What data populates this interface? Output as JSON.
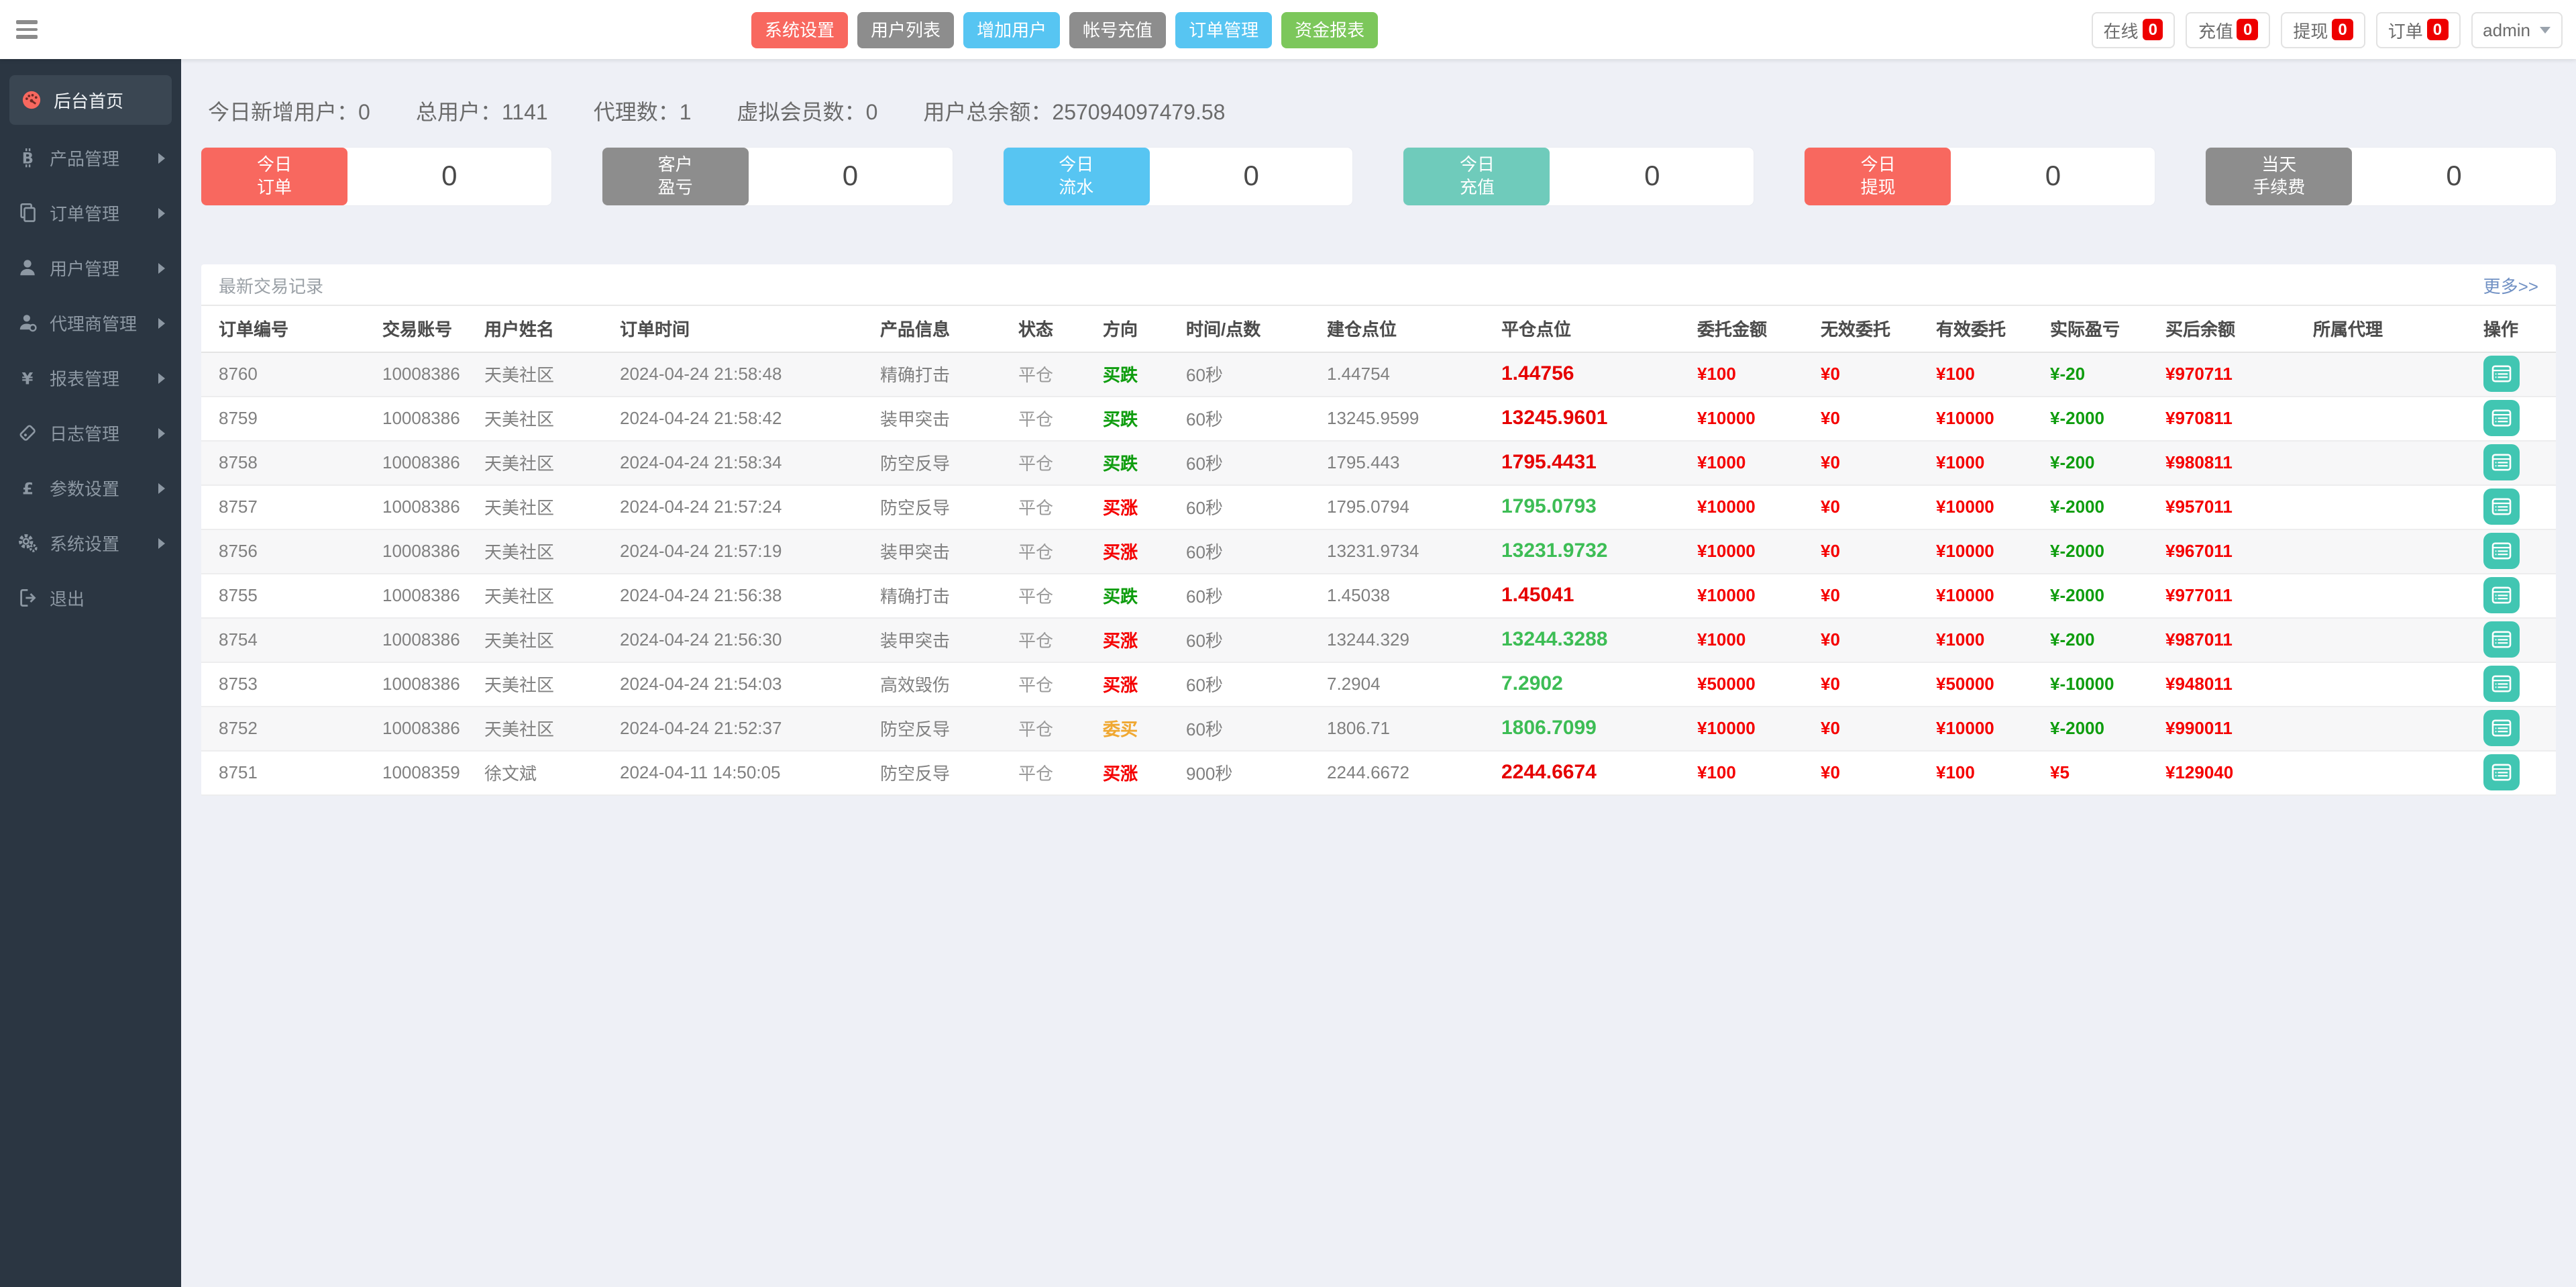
{
  "topbar": {
    "nav_buttons": [
      {
        "label": "系统设置",
        "color": "#f8685f"
      },
      {
        "label": "用户列表",
        "color": "#8d8d8d"
      },
      {
        "label": "增加用户",
        "color": "#57c5f2"
      },
      {
        "label": "帐号充值",
        "color": "#8d8d8d"
      },
      {
        "label": "订单管理",
        "color": "#57c5f2"
      },
      {
        "label": "资金报表",
        "color": "#7cc75b"
      }
    ],
    "status_items": [
      {
        "label": "在线",
        "count": "0"
      },
      {
        "label": "充值",
        "count": "0"
      },
      {
        "label": "提现",
        "count": "0"
      },
      {
        "label": "订单",
        "count": "0"
      }
    ],
    "user_menu": {
      "name": "admin"
    },
    "badge_color": "#ee0000"
  },
  "sidebar": {
    "items": [
      {
        "label": "后台首页",
        "icon": "dashboard",
        "active": true,
        "arrow": false
      },
      {
        "label": "产品管理",
        "icon": "bitcoin",
        "active": false,
        "arrow": true
      },
      {
        "label": "订单管理",
        "icon": "orders",
        "active": false,
        "arrow": true
      },
      {
        "label": "用户管理",
        "icon": "user",
        "active": false,
        "arrow": true
      },
      {
        "label": "代理商管理",
        "icon": "agent",
        "active": false,
        "arrow": true
      },
      {
        "label": "报表管理",
        "icon": "yen",
        "active": false,
        "arrow": true
      },
      {
        "label": "日志管理",
        "icon": "log",
        "active": false,
        "arrow": true
      },
      {
        "label": "参数设置",
        "icon": "pound",
        "active": false,
        "arrow": true
      },
      {
        "label": "系统设置",
        "icon": "gears",
        "active": false,
        "arrow": true
      },
      {
        "label": "退出",
        "icon": "logout",
        "active": false,
        "arrow": false
      }
    ]
  },
  "stats": [
    {
      "label": "今日新增用户：",
      "value": "0"
    },
    {
      "label": "总用户：",
      "value": "1141"
    },
    {
      "label": "代理数：",
      "value": "1"
    },
    {
      "label": "虚拟会员数：",
      "value": "0"
    },
    {
      "label": "用户总余额：",
      "value": "257094097479.58"
    }
  ],
  "summary_cards": [
    {
      "label": "今日\n订单",
      "color": "#f8685f",
      "value": "0"
    },
    {
      "label": "客户\n盈亏",
      "color": "#8d8d8d",
      "value": "0"
    },
    {
      "label": "今日\n流水",
      "color": "#57c5f2",
      "value": "0"
    },
    {
      "label": "今日\n充值",
      "color": "#6fcbbb",
      "value": "0"
    },
    {
      "label": "今日\n提现",
      "color": "#f8685f",
      "value": "0"
    },
    {
      "label": "当天\n手续费",
      "color": "#8d8d8d",
      "value": "0"
    }
  ],
  "panel": {
    "title": "最新交易记录",
    "more_label": "更多>>",
    "columns": [
      "订单编号",
      "交易账号",
      "用户姓名",
      "订单时间",
      "产品信息",
      "状态",
      "方向",
      "时间/点数",
      "建仓点位",
      "平仓点位",
      "委托金额",
      "无效委托",
      "有效委托",
      "实际盈亏",
      "买后余额",
      "所属代理",
      "操作"
    ],
    "rows": [
      {
        "id": "8760",
        "account": "10008386",
        "name": "天美社区",
        "time": "2024-04-24 21:58:48",
        "product": "精确打击",
        "status": "平仓",
        "direction": "买跌",
        "direction_color": "green",
        "period": "60秒",
        "open": "1.44754",
        "close": "1.44756",
        "close_color": "red",
        "amount": "¥100",
        "invalid": "¥0",
        "valid": "¥100",
        "profit": "¥-20",
        "profit_color": "green",
        "balance": "¥970711",
        "agent": ""
      },
      {
        "id": "8759",
        "account": "10008386",
        "name": "天美社区",
        "time": "2024-04-24 21:58:42",
        "product": "装甲突击",
        "status": "平仓",
        "direction": "买跌",
        "direction_color": "green",
        "period": "60秒",
        "open": "13245.9599",
        "close": "13245.9601",
        "close_color": "red",
        "amount": "¥10000",
        "invalid": "¥0",
        "valid": "¥10000",
        "profit": "¥-2000",
        "profit_color": "green",
        "balance": "¥970811",
        "agent": ""
      },
      {
        "id": "8758",
        "account": "10008386",
        "name": "天美社区",
        "time": "2024-04-24 21:58:34",
        "product": "防空反导",
        "status": "平仓",
        "direction": "买跌",
        "direction_color": "green",
        "period": "60秒",
        "open": "1795.443",
        "close": "1795.4431",
        "close_color": "red",
        "amount": "¥1000",
        "invalid": "¥0",
        "valid": "¥1000",
        "profit": "¥-200",
        "profit_color": "green",
        "balance": "¥980811",
        "agent": ""
      },
      {
        "id": "8757",
        "account": "10008386",
        "name": "天美社区",
        "time": "2024-04-24 21:57:24",
        "product": "防空反导",
        "status": "平仓",
        "direction": "买涨",
        "direction_color": "red",
        "period": "60秒",
        "open": "1795.0794",
        "close": "1795.0793",
        "close_color": "green",
        "amount": "¥10000",
        "invalid": "¥0",
        "valid": "¥10000",
        "profit": "¥-2000",
        "profit_color": "green",
        "balance": "¥957011",
        "agent": ""
      },
      {
        "id": "8756",
        "account": "10008386",
        "name": "天美社区",
        "time": "2024-04-24 21:57:19",
        "product": "装甲突击",
        "status": "平仓",
        "direction": "买涨",
        "direction_color": "red",
        "period": "60秒",
        "open": "13231.9734",
        "close": "13231.9732",
        "close_color": "green",
        "amount": "¥10000",
        "invalid": "¥0",
        "valid": "¥10000",
        "profit": "¥-2000",
        "profit_color": "green",
        "balance": "¥967011",
        "agent": ""
      },
      {
        "id": "8755",
        "account": "10008386",
        "name": "天美社区",
        "time": "2024-04-24 21:56:38",
        "product": "精确打击",
        "status": "平仓",
        "direction": "买跌",
        "direction_color": "green",
        "period": "60秒",
        "open": "1.45038",
        "close": "1.45041",
        "close_color": "red",
        "amount": "¥10000",
        "invalid": "¥0",
        "valid": "¥10000",
        "profit": "¥-2000",
        "profit_color": "green",
        "balance": "¥977011",
        "agent": ""
      },
      {
        "id": "8754",
        "account": "10008386",
        "name": "天美社区",
        "time": "2024-04-24 21:56:30",
        "product": "装甲突击",
        "status": "平仓",
        "direction": "买涨",
        "direction_color": "red",
        "period": "60秒",
        "open": "13244.329",
        "close": "13244.3288",
        "close_color": "green",
        "amount": "¥1000",
        "invalid": "¥0",
        "valid": "¥1000",
        "profit": "¥-200",
        "profit_color": "green",
        "balance": "¥987011",
        "agent": ""
      },
      {
        "id": "8753",
        "account": "10008386",
        "name": "天美社区",
        "time": "2024-04-24 21:54:03",
        "product": "高效毁伤",
        "status": "平仓",
        "direction": "买涨",
        "direction_color": "red",
        "period": "60秒",
        "open": "7.2904",
        "close": "7.2902",
        "close_color": "green",
        "amount": "¥50000",
        "invalid": "¥0",
        "valid": "¥50000",
        "profit": "¥-10000",
        "profit_color": "green",
        "balance": "¥948011",
        "agent": ""
      },
      {
        "id": "8752",
        "account": "10008386",
        "name": "天美社区",
        "time": "2024-04-24 21:52:37",
        "product": "防空反导",
        "status": "平仓",
        "direction": "委买",
        "direction_color": "orange",
        "period": "60秒",
        "open": "1806.71",
        "close": "1806.7099",
        "close_color": "green",
        "amount": "¥10000",
        "invalid": "¥0",
        "valid": "¥10000",
        "profit": "¥-2000",
        "profit_color": "green",
        "balance": "¥990011",
        "agent": ""
      },
      {
        "id": "8751",
        "account": "10008359",
        "name": "徐文斌",
        "time": "2024-04-11 14:50:05",
        "product": "防空反导",
        "status": "平仓",
        "direction": "买涨",
        "direction_color": "red",
        "period": "900秒",
        "open": "2244.6672",
        "close": "2244.6674",
        "close_color": "red",
        "amount": "¥100",
        "invalid": "¥0",
        "valid": "¥100",
        "profit": "¥5",
        "profit_color": "red",
        "balance": "¥129040",
        "agent": ""
      }
    ]
  }
}
